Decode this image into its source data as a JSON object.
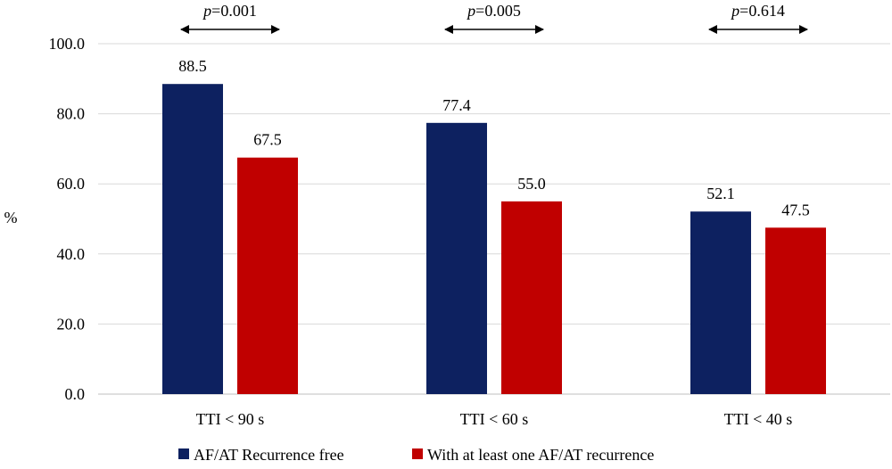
{
  "chart_data": {
    "type": "bar",
    "ylabel": "%",
    "ylim": [
      0,
      100
    ],
    "yticks": [
      "0.0",
      "20.0",
      "40.0",
      "60.0",
      "80.0",
      "100.0"
    ],
    "grid": true,
    "legend_position": "bottom",
    "categories": [
      "TTI < 90 s",
      "TTI < 60 s",
      "TTI < 40 s"
    ],
    "series": [
      {
        "name": "AF/AT Recurrence free",
        "color": "#0d2160",
        "values": [
          88.5,
          77.4,
          52.1
        ],
        "labels": [
          "88.5",
          "77.4",
          "52.1"
        ]
      },
      {
        "name": "With at least one AF/AT recurrence",
        "color": "#c00000",
        "values": [
          67.5,
          55.0,
          47.5
        ],
        "labels": [
          "67.5",
          "55.0",
          "47.5"
        ]
      }
    ],
    "annotations": [
      {
        "italic": "p",
        "text": "=0.001"
      },
      {
        "italic": "p",
        "text": "=0.005"
      },
      {
        "italic": "p",
        "text": "=0.614"
      }
    ]
  }
}
